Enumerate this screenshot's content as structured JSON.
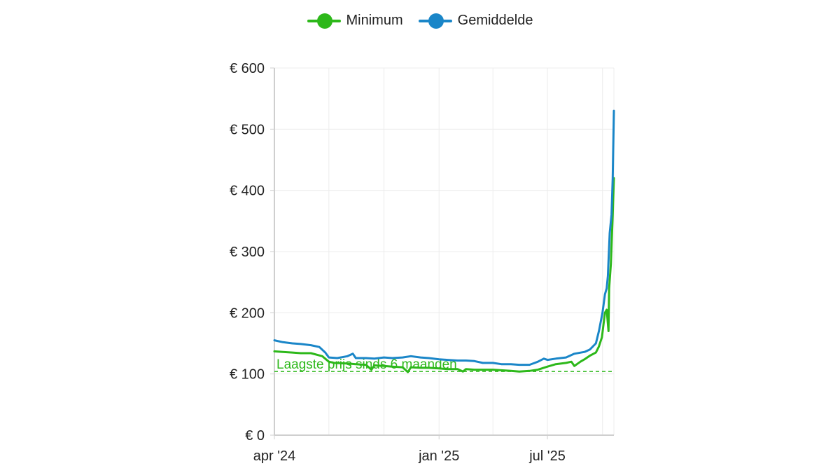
{
  "chart_data": {
    "type": "line",
    "title": "",
    "xlabel": "",
    "ylabel": "",
    "x_axis": {
      "type": "date",
      "range": [
        "2024-04-01",
        "2025-10-20"
      ],
      "ticks": [
        {
          "date": "2024-04-01",
          "label": "apr '24"
        },
        {
          "date": "2025-01-01",
          "label": "jan '25"
        },
        {
          "date": "2025-07-01",
          "label": "jul '25"
        }
      ],
      "grid_dates": [
        "2024-04-01",
        "2024-07-01",
        "2024-10-01",
        "2025-01-01",
        "2025-04-01",
        "2025-07-01",
        "2025-10-01"
      ]
    },
    "y_axis": {
      "ylim": [
        0,
        600
      ],
      "ticks": [
        0,
        100,
        200,
        300,
        400,
        500,
        600
      ],
      "tick_labels": [
        "€ 0",
        "€ 100",
        "€ 200",
        "€ 300",
        "€ 400",
        "€ 500",
        "€ 600"
      ]
    },
    "grid": true,
    "legend": {
      "position": "top-center"
    },
    "series": [
      {
        "name": "Minimum",
        "color": "#2db81a",
        "points": [
          [
            "2024-04-01",
            137
          ],
          [
            "2024-04-15",
            136
          ],
          [
            "2024-05-01",
            135
          ],
          [
            "2024-05-15",
            134
          ],
          [
            "2024-06-01",
            134
          ],
          [
            "2024-06-20",
            129
          ],
          [
            "2024-07-01",
            120
          ],
          [
            "2024-07-10",
            118
          ],
          [
            "2024-08-01",
            117
          ],
          [
            "2024-08-15",
            116
          ],
          [
            "2024-09-01",
            115
          ],
          [
            "2024-09-10",
            107
          ],
          [
            "2024-09-15",
            114
          ],
          [
            "2024-10-01",
            113
          ],
          [
            "2024-10-15",
            112
          ],
          [
            "2024-11-01",
            111
          ],
          [
            "2024-11-10",
            103
          ],
          [
            "2024-11-15",
            111
          ],
          [
            "2024-12-01",
            110
          ],
          [
            "2024-12-15",
            110
          ],
          [
            "2025-01-01",
            109
          ],
          [
            "2025-01-15",
            108
          ],
          [
            "2025-02-01",
            108
          ],
          [
            "2025-02-10",
            104
          ],
          [
            "2025-02-15",
            108
          ],
          [
            "2025-03-01",
            107
          ],
          [
            "2025-03-15",
            107
          ],
          [
            "2025-04-01",
            107
          ],
          [
            "2025-04-15",
            106
          ],
          [
            "2025-05-01",
            105
          ],
          [
            "2025-05-15",
            104
          ],
          [
            "2025-06-01",
            105
          ],
          [
            "2025-06-15",
            107
          ],
          [
            "2025-07-01",
            112
          ],
          [
            "2025-07-15",
            116
          ],
          [
            "2025-08-01",
            118
          ],
          [
            "2025-08-10",
            120
          ],
          [
            "2025-08-15",
            113
          ],
          [
            "2025-08-25",
            120
          ],
          [
            "2025-09-01",
            124
          ],
          [
            "2025-09-10",
            130
          ],
          [
            "2025-09-20",
            135
          ],
          [
            "2025-09-25",
            145
          ],
          [
            "2025-09-30",
            160
          ],
          [
            "2025-10-05",
            200
          ],
          [
            "2025-10-08",
            205
          ],
          [
            "2025-10-11",
            170
          ],
          [
            "2025-10-12",
            240
          ],
          [
            "2025-10-15",
            280
          ],
          [
            "2025-10-18",
            360
          ],
          [
            "2025-10-20",
            420
          ]
        ]
      },
      {
        "name": "Gemiddelde",
        "color": "#1a86c8",
        "points": [
          [
            "2024-04-01",
            155
          ],
          [
            "2024-04-15",
            152
          ],
          [
            "2024-05-01",
            150
          ],
          [
            "2024-05-15",
            149
          ],
          [
            "2024-06-01",
            147
          ],
          [
            "2024-06-15",
            144
          ],
          [
            "2024-06-25",
            135
          ],
          [
            "2024-07-01",
            127
          ],
          [
            "2024-07-15",
            126
          ],
          [
            "2024-08-01",
            129
          ],
          [
            "2024-08-10",
            133
          ],
          [
            "2024-08-15",
            126
          ],
          [
            "2024-09-01",
            126
          ],
          [
            "2024-09-15",
            125
          ],
          [
            "2024-10-01",
            127
          ],
          [
            "2024-10-15",
            126
          ],
          [
            "2024-11-01",
            127
          ],
          [
            "2024-11-15",
            129
          ],
          [
            "2024-12-01",
            127
          ],
          [
            "2024-12-15",
            126
          ],
          [
            "2025-01-01",
            124
          ],
          [
            "2025-01-15",
            123
          ],
          [
            "2025-02-01",
            122
          ],
          [
            "2025-02-15",
            122
          ],
          [
            "2025-03-01",
            121
          ],
          [
            "2025-03-15",
            118
          ],
          [
            "2025-04-01",
            118
          ],
          [
            "2025-04-15",
            116
          ],
          [
            "2025-05-01",
            116
          ],
          [
            "2025-05-15",
            115
          ],
          [
            "2025-06-01",
            115
          ],
          [
            "2025-06-15",
            120
          ],
          [
            "2025-06-25",
            125
          ],
          [
            "2025-07-01",
            123
          ],
          [
            "2025-07-15",
            125
          ],
          [
            "2025-08-01",
            127
          ],
          [
            "2025-08-15",
            133
          ],
          [
            "2025-09-01",
            136
          ],
          [
            "2025-09-10",
            140
          ],
          [
            "2025-09-20",
            150
          ],
          [
            "2025-09-25",
            170
          ],
          [
            "2025-10-01",
            200
          ],
          [
            "2025-10-05",
            230
          ],
          [
            "2025-10-08",
            240
          ],
          [
            "2025-10-10",
            260
          ],
          [
            "2025-10-13",
            330
          ],
          [
            "2025-10-16",
            360
          ],
          [
            "2025-10-18",
            420
          ],
          [
            "2025-10-20",
            530
          ]
        ]
      }
    ],
    "annotations": [
      {
        "text": "Laagste prijs sinds 6 maanden",
        "y": 104,
        "style": "dashed",
        "color": "#2db81a"
      }
    ]
  }
}
